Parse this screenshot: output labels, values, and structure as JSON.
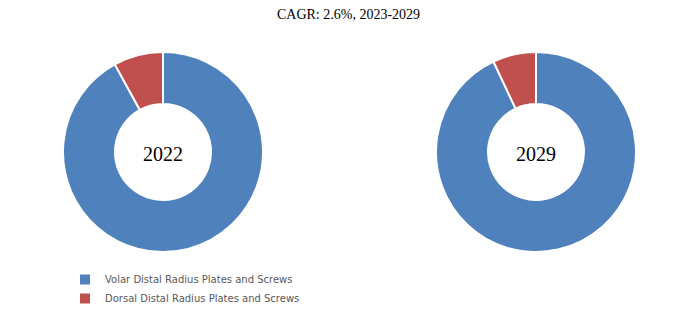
{
  "title": "CAGR: 2.6%, 2023-2029",
  "chart_data": [
    {
      "type": "pie",
      "annotation": "2022",
      "categories": [
        "Volar Distal Radius Plates and Screws",
        "Dorsal Distal Radius Plates and Screws"
      ],
      "values": [
        92,
        8
      ],
      "colors": [
        "#4f81bd",
        "#c0504d"
      ],
      "legend": "bottom"
    },
    {
      "type": "pie",
      "annotation": "2029",
      "categories": [
        "Volar Distal Radius Plates and Screws",
        "Dorsal Distal Radius Plates and Screws"
      ],
      "values": [
        93,
        7
      ],
      "colors": [
        "#4f81bd",
        "#c0504d"
      ],
      "legend": "bottom"
    }
  ]
}
